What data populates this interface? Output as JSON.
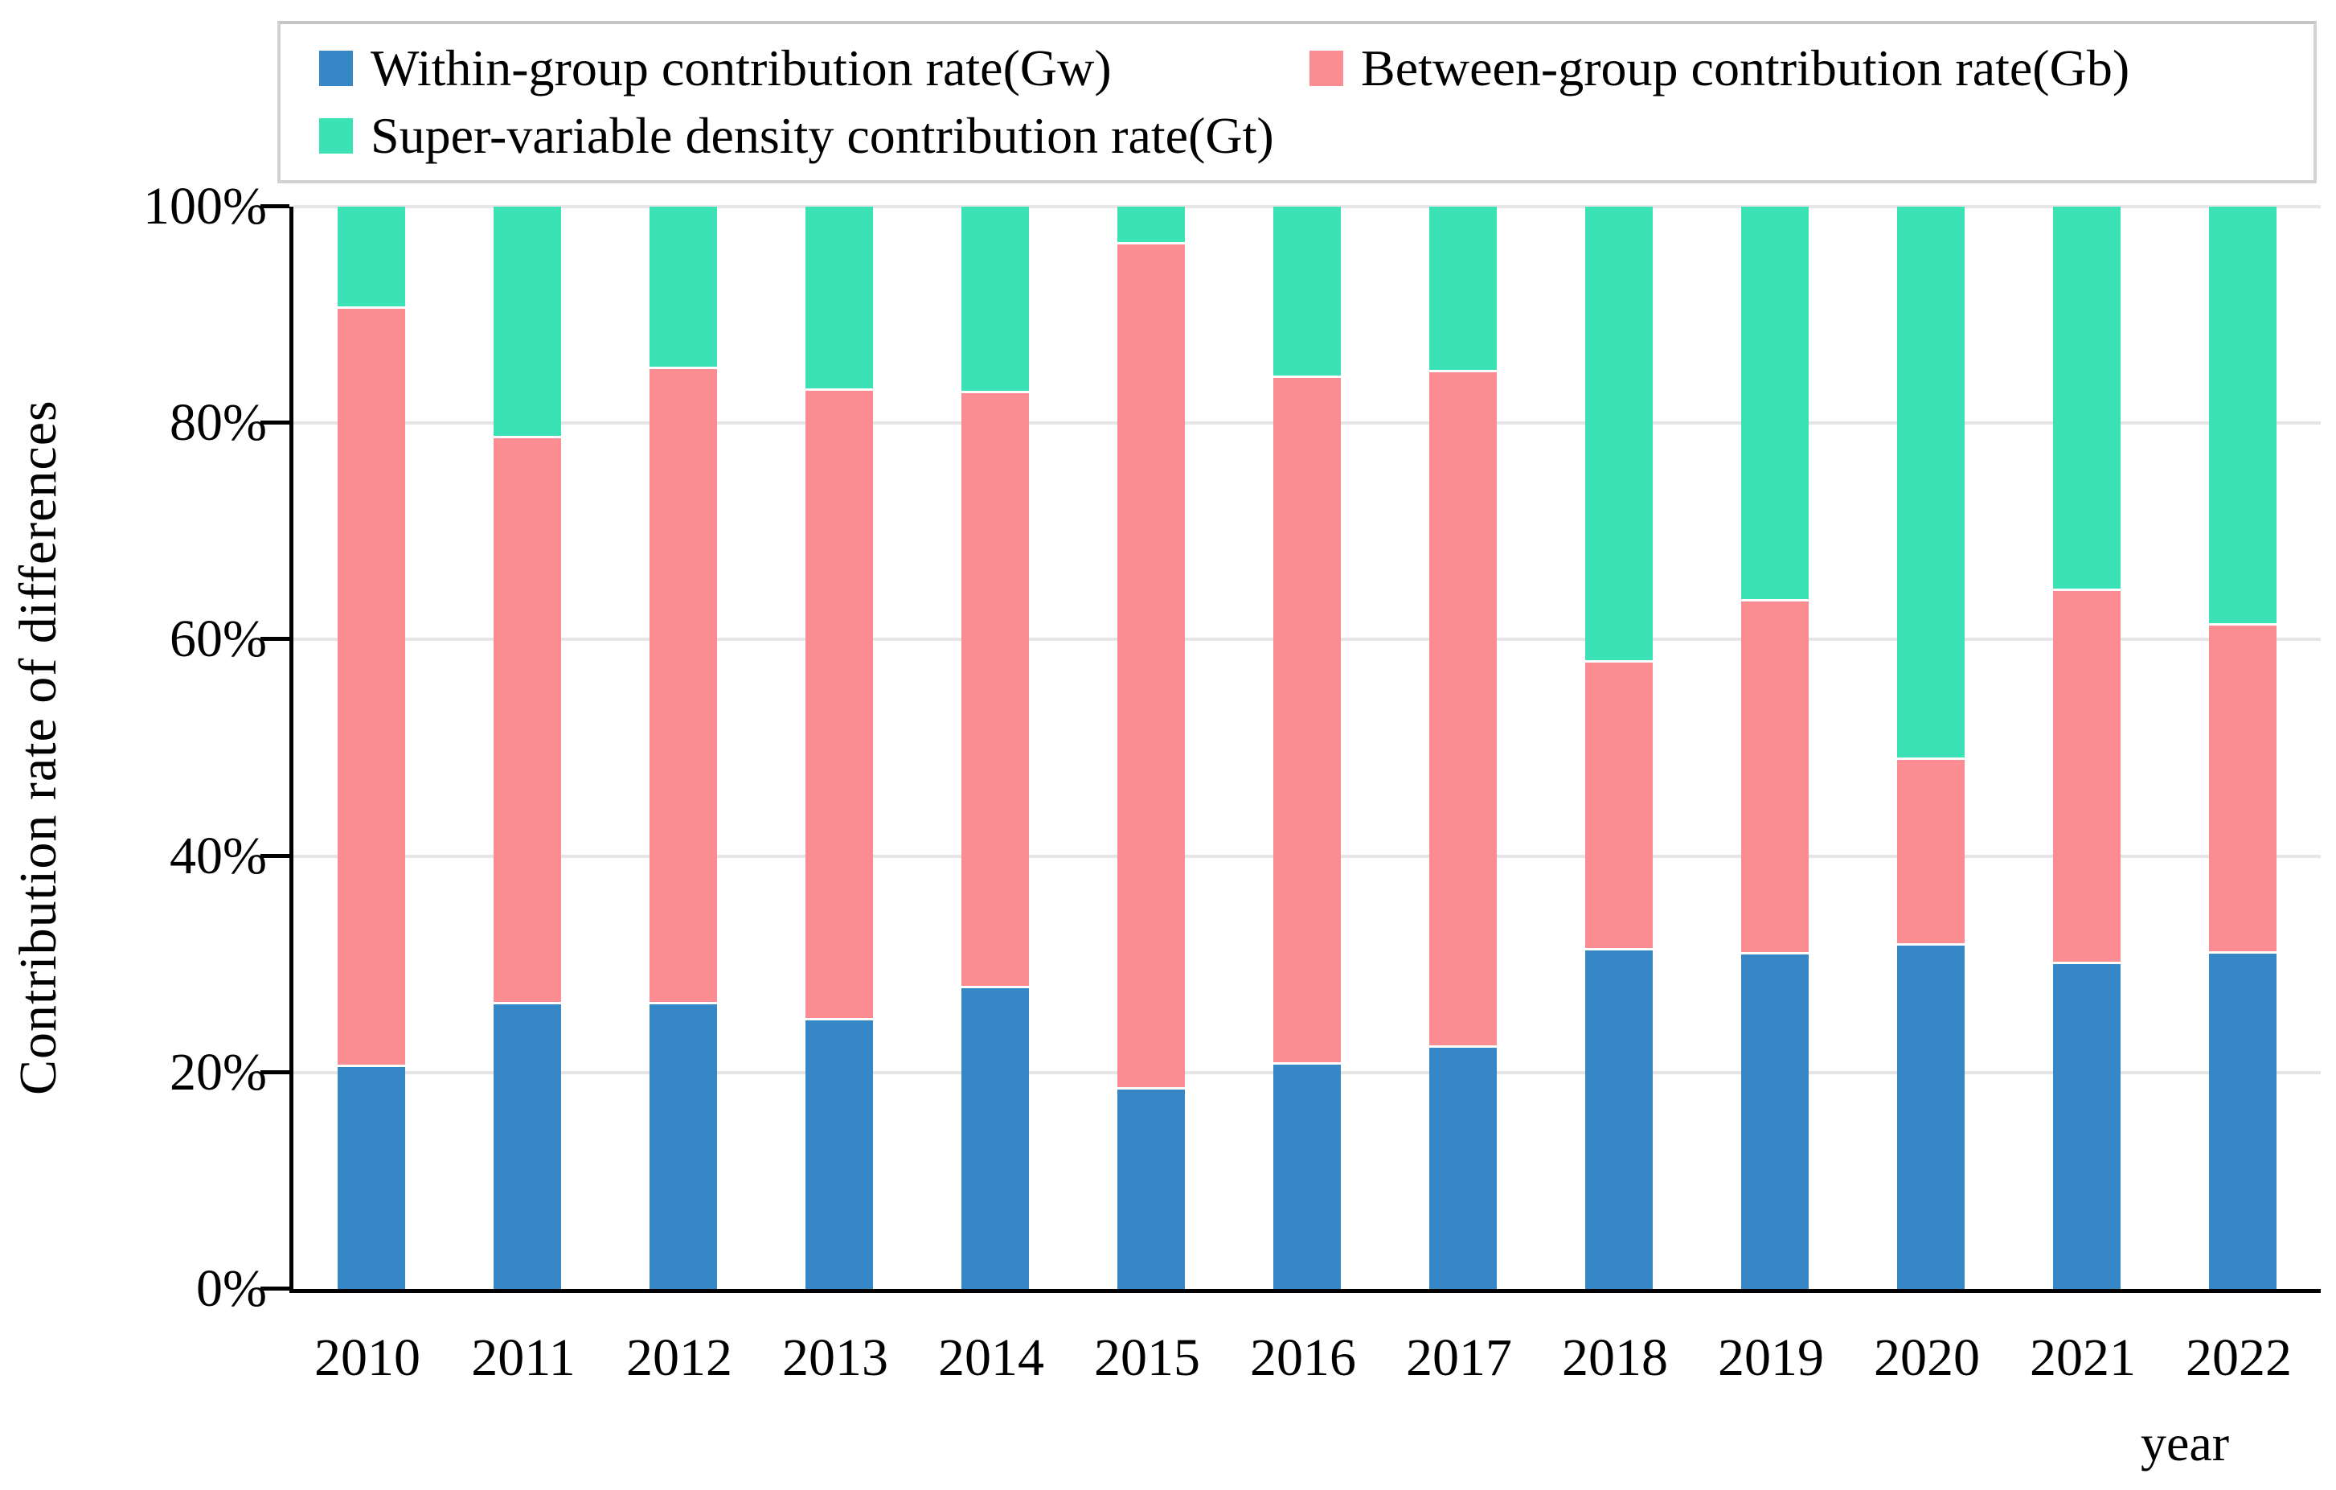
{
  "chart_data": {
    "type": "bar",
    "stacked": true,
    "percent_scale": true,
    "categories": [
      "2010",
      "2011",
      "2012",
      "2013",
      "2014",
      "2015",
      "2016",
      "2017",
      "2018",
      "2019",
      "2020",
      "2021",
      "2022"
    ],
    "series": [
      {
        "name": "Within-group contribution rate(Gw)",
        "color": "#3587c6",
        "values": [
          20.5,
          26.3,
          26.3,
          24.8,
          27.8,
          18.4,
          20.7,
          22.3,
          31.3,
          30.9,
          31.7,
          30.0,
          31.0
        ]
      },
      {
        "name": "Between-group contribution rate(Gb)",
        "color": "#fb8d92",
        "values": [
          70.1,
          52.3,
          58.7,
          58.2,
          55.0,
          78.1,
          63.5,
          62.4,
          26.6,
          32.6,
          17.2,
          34.5,
          30.3
        ]
      },
      {
        "name": "Super-variable density contribution rate(Gt)",
        "color": "#3ae2b6",
        "values": [
          9.4,
          21.4,
          15.0,
          17.0,
          17.2,
          3.5,
          15.8,
          15.3,
          42.1,
          36.5,
          51.1,
          35.5,
          38.7
        ]
      }
    ],
    "ylabel": "Contribution rate of differences",
    "xlabel": "year",
    "yticks": [
      "0%",
      "20%",
      "40%",
      "60%",
      "80%",
      "100%"
    ],
    "ylim": [
      0,
      100
    ],
    "grid": true,
    "legend_position": "top",
    "colors": {
      "axis": "#000000",
      "gridline": "#e6e6e6",
      "legend_border": "#d2d2d2"
    }
  }
}
